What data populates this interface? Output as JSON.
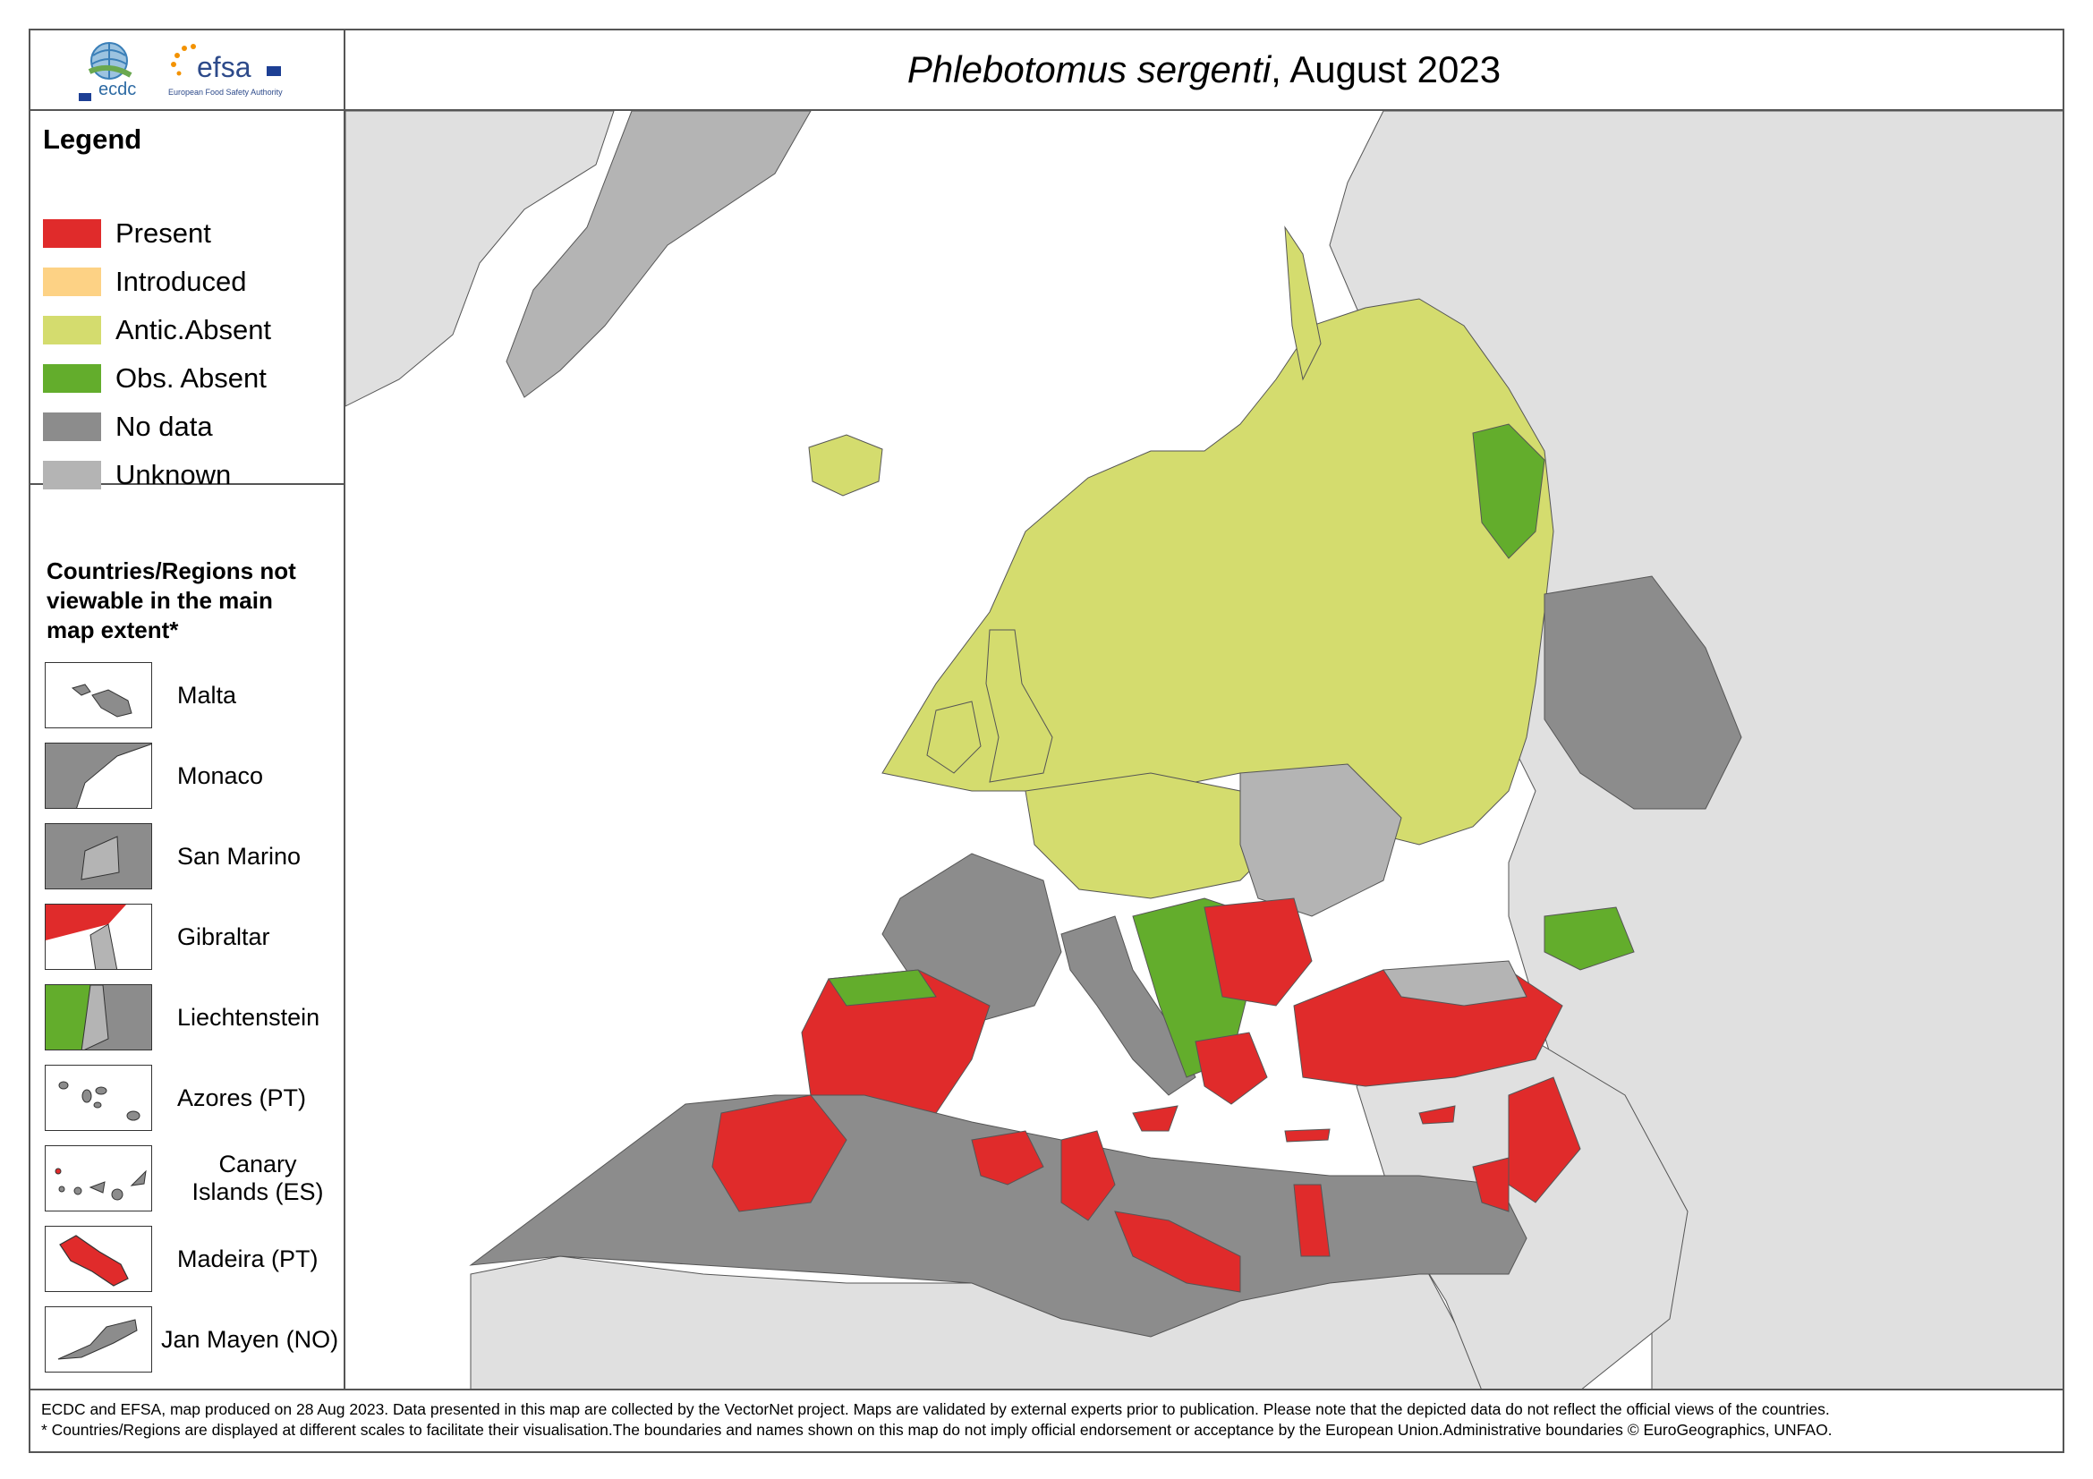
{
  "title": {
    "species": "Phlebotomus sergenti",
    "suffix": ", August 2023"
  },
  "logos": {
    "ecdc": "ecdc",
    "efsa": "efsa",
    "efsa_sub": "European Food Safety Authority"
  },
  "legend": {
    "title": "Legend",
    "items": [
      {
        "label": "Present",
        "color": "#e02b2b"
      },
      {
        "label": "Introduced",
        "color": "#fdd285"
      },
      {
        "label": "Antic.Absent",
        "color": "#d4dc6e"
      },
      {
        "label": "Obs. Absent",
        "color": "#63ad2c"
      },
      {
        "label": "No data",
        "color": "#8c8c8c"
      },
      {
        "label": "Unknown",
        "color": "#b4b4b4"
      }
    ]
  },
  "regions": {
    "title": "Countries/Regions not viewable in the main map extent*",
    "items": [
      {
        "label": "Malta",
        "icon": "malta-inset-icon"
      },
      {
        "label": "Monaco",
        "icon": "monaco-inset-icon"
      },
      {
        "label": "San Marino",
        "icon": "san-marino-inset-icon"
      },
      {
        "label": "Gibraltar",
        "icon": "gibraltar-inset-icon"
      },
      {
        "label": "Liechtenstein",
        "icon": "liechtenstein-inset-icon"
      },
      {
        "label": "Azores (PT)",
        "icon": "azores-inset-icon"
      },
      {
        "label": "Canary Islands (ES)",
        "icon": "canary-islands-inset-icon"
      },
      {
        "label": "Madeira (PT)",
        "icon": "madeira-inset-icon"
      },
      {
        "label": "Jan Mayen (NO)",
        "icon": "jan-mayen-inset-icon"
      }
    ]
  },
  "footer": {
    "line1": "ECDC and EFSA, map produced on 28 Aug 2023. Data presented in this map are collected by the VectorNet project. Maps are validated by external experts prior to publication. Please note that the depicted data do not reflect the official views of the countries.",
    "line2": "* Countries/Regions are displayed at different scales to facilitate their visualisation.The boundaries and names shown on this map do not imply official endorsement or acceptance by the European Union.Administrative boundaries © EuroGeographics, UNFAO."
  },
  "colors": {
    "present": "#e02b2b",
    "antic_absent": "#d4dc6e",
    "obs_absent": "#63ad2c",
    "no_data": "#8c8c8c",
    "unknown": "#b4b4b4",
    "outside": "#e0e0e0",
    "sea": "#ffffff"
  }
}
